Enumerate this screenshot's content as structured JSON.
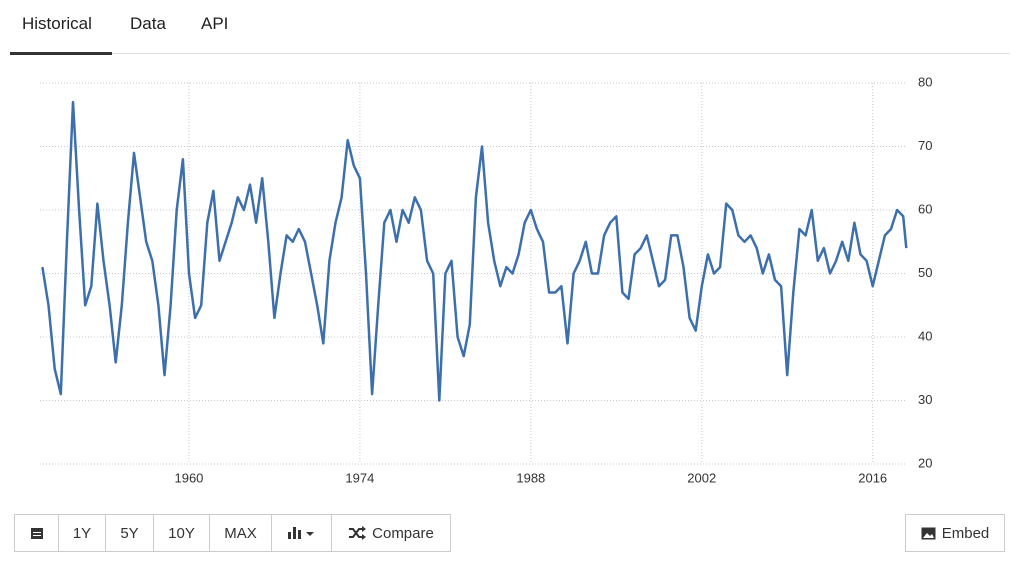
{
  "tabs": [
    "Historical",
    "Data",
    "API"
  ],
  "buttons": [
    "1Y",
    "5Y",
    "10Y",
    "MAX",
    "Compare",
    "Embed"
  ],
  "chart_data": {
    "type": "line",
    "color": "#3d6fad",
    "grid": true,
    "xlim": [
      1947.8,
      2019.3
    ],
    "xticks": [
      1960,
      1974,
      1988,
      2002,
      2016
    ],
    "ylim": [
      20,
      80
    ],
    "yticks": [
      20,
      30,
      40,
      50,
      60,
      70,
      80
    ],
    "x": [
      1948.0,
      1948.5,
      1949.0,
      1949.5,
      1950.0,
      1950.5,
      1951.0,
      1951.5,
      1952.0,
      1952.5,
      1953.0,
      1953.5,
      1954.0,
      1954.5,
      1955.0,
      1955.5,
      1956.0,
      1956.5,
      1957.0,
      1957.5,
      1958.0,
      1958.5,
      1959.0,
      1959.5,
      1960.0,
      1960.5,
      1961.0,
      1961.5,
      1962.0,
      1962.5,
      1963.0,
      1963.5,
      1964.0,
      1964.5,
      1965.0,
      1965.5,
      1966.0,
      1966.5,
      1967.0,
      1967.5,
      1968.0,
      1968.5,
      1969.0,
      1969.5,
      1970.0,
      1970.5,
      1971.0,
      1971.5,
      1972.0,
      1972.5,
      1973.0,
      1973.5,
      1974.0,
      1974.5,
      1975.0,
      1975.5,
      1976.0,
      1976.5,
      1977.0,
      1977.5,
      1978.0,
      1978.5,
      1979.0,
      1979.5,
      1980.0,
      1980.5,
      1981.0,
      1981.5,
      1982.0,
      1982.5,
      1983.0,
      1983.5,
      1984.0,
      1984.5,
      1985.0,
      1985.5,
      1986.0,
      1986.5,
      1987.0,
      1987.5,
      1988.0,
      1988.5,
      1989.0,
      1989.5,
      1990.0,
      1990.5,
      1991.0,
      1991.5,
      1992.0,
      1992.5,
      1993.0,
      1993.5,
      1994.0,
      1994.5,
      1995.0,
      1995.5,
      1996.0,
      1996.5,
      1997.0,
      1997.5,
      1998.0,
      1998.5,
      1999.0,
      1999.5,
      2000.0,
      2000.5,
      2001.0,
      2001.5,
      2002.0,
      2002.5,
      2003.0,
      2003.5,
      2004.0,
      2004.5,
      2005.0,
      2005.5,
      2006.0,
      2006.5,
      2007.0,
      2007.5,
      2008.0,
      2008.5,
      2009.0,
      2009.5,
      2010.0,
      2010.5,
      2011.0,
      2011.5,
      2012.0,
      2012.5,
      2013.0,
      2013.5,
      2014.0,
      2014.5,
      2015.0,
      2015.5,
      2016.0,
      2016.5,
      2017.0,
      2017.5,
      2018.0,
      2018.5,
      2018.75
    ],
    "values": [
      51,
      45,
      35,
      31,
      55,
      77,
      60,
      45,
      48,
      61,
      52,
      45,
      36,
      45,
      58,
      69,
      62,
      55,
      52,
      45,
      34,
      45,
      60,
      68,
      50,
      43,
      45,
      58,
      63,
      52,
      55,
      58,
      62,
      60,
      64,
      58,
      65,
      55,
      43,
      50,
      56,
      55,
      57,
      55,
      50,
      45,
      39,
      52,
      58,
      62,
      71,
      67,
      65,
      50,
      31,
      45,
      58,
      60,
      55,
      60,
      58,
      62,
      60,
      52,
      50,
      30,
      50,
      52,
      40,
      37,
      42,
      62,
      70,
      58,
      52,
      48,
      51,
      50,
      53,
      58,
      60,
      57,
      55,
      47,
      47,
      48,
      39,
      50,
      52,
      55,
      50,
      50,
      56,
      58,
      59,
      47,
      46,
      53,
      54,
      56,
      52,
      48,
      49,
      56,
      56,
      51,
      43,
      41,
      48,
      53,
      50,
      51,
      61,
      60,
      56,
      55,
      56,
      54,
      50,
      53,
      49,
      48,
      34,
      47,
      57,
      56,
      60,
      52,
      54,
      50,
      52,
      55,
      52,
      58,
      53,
      52,
      48,
      52,
      56,
      57,
      60,
      59,
      54
    ]
  }
}
